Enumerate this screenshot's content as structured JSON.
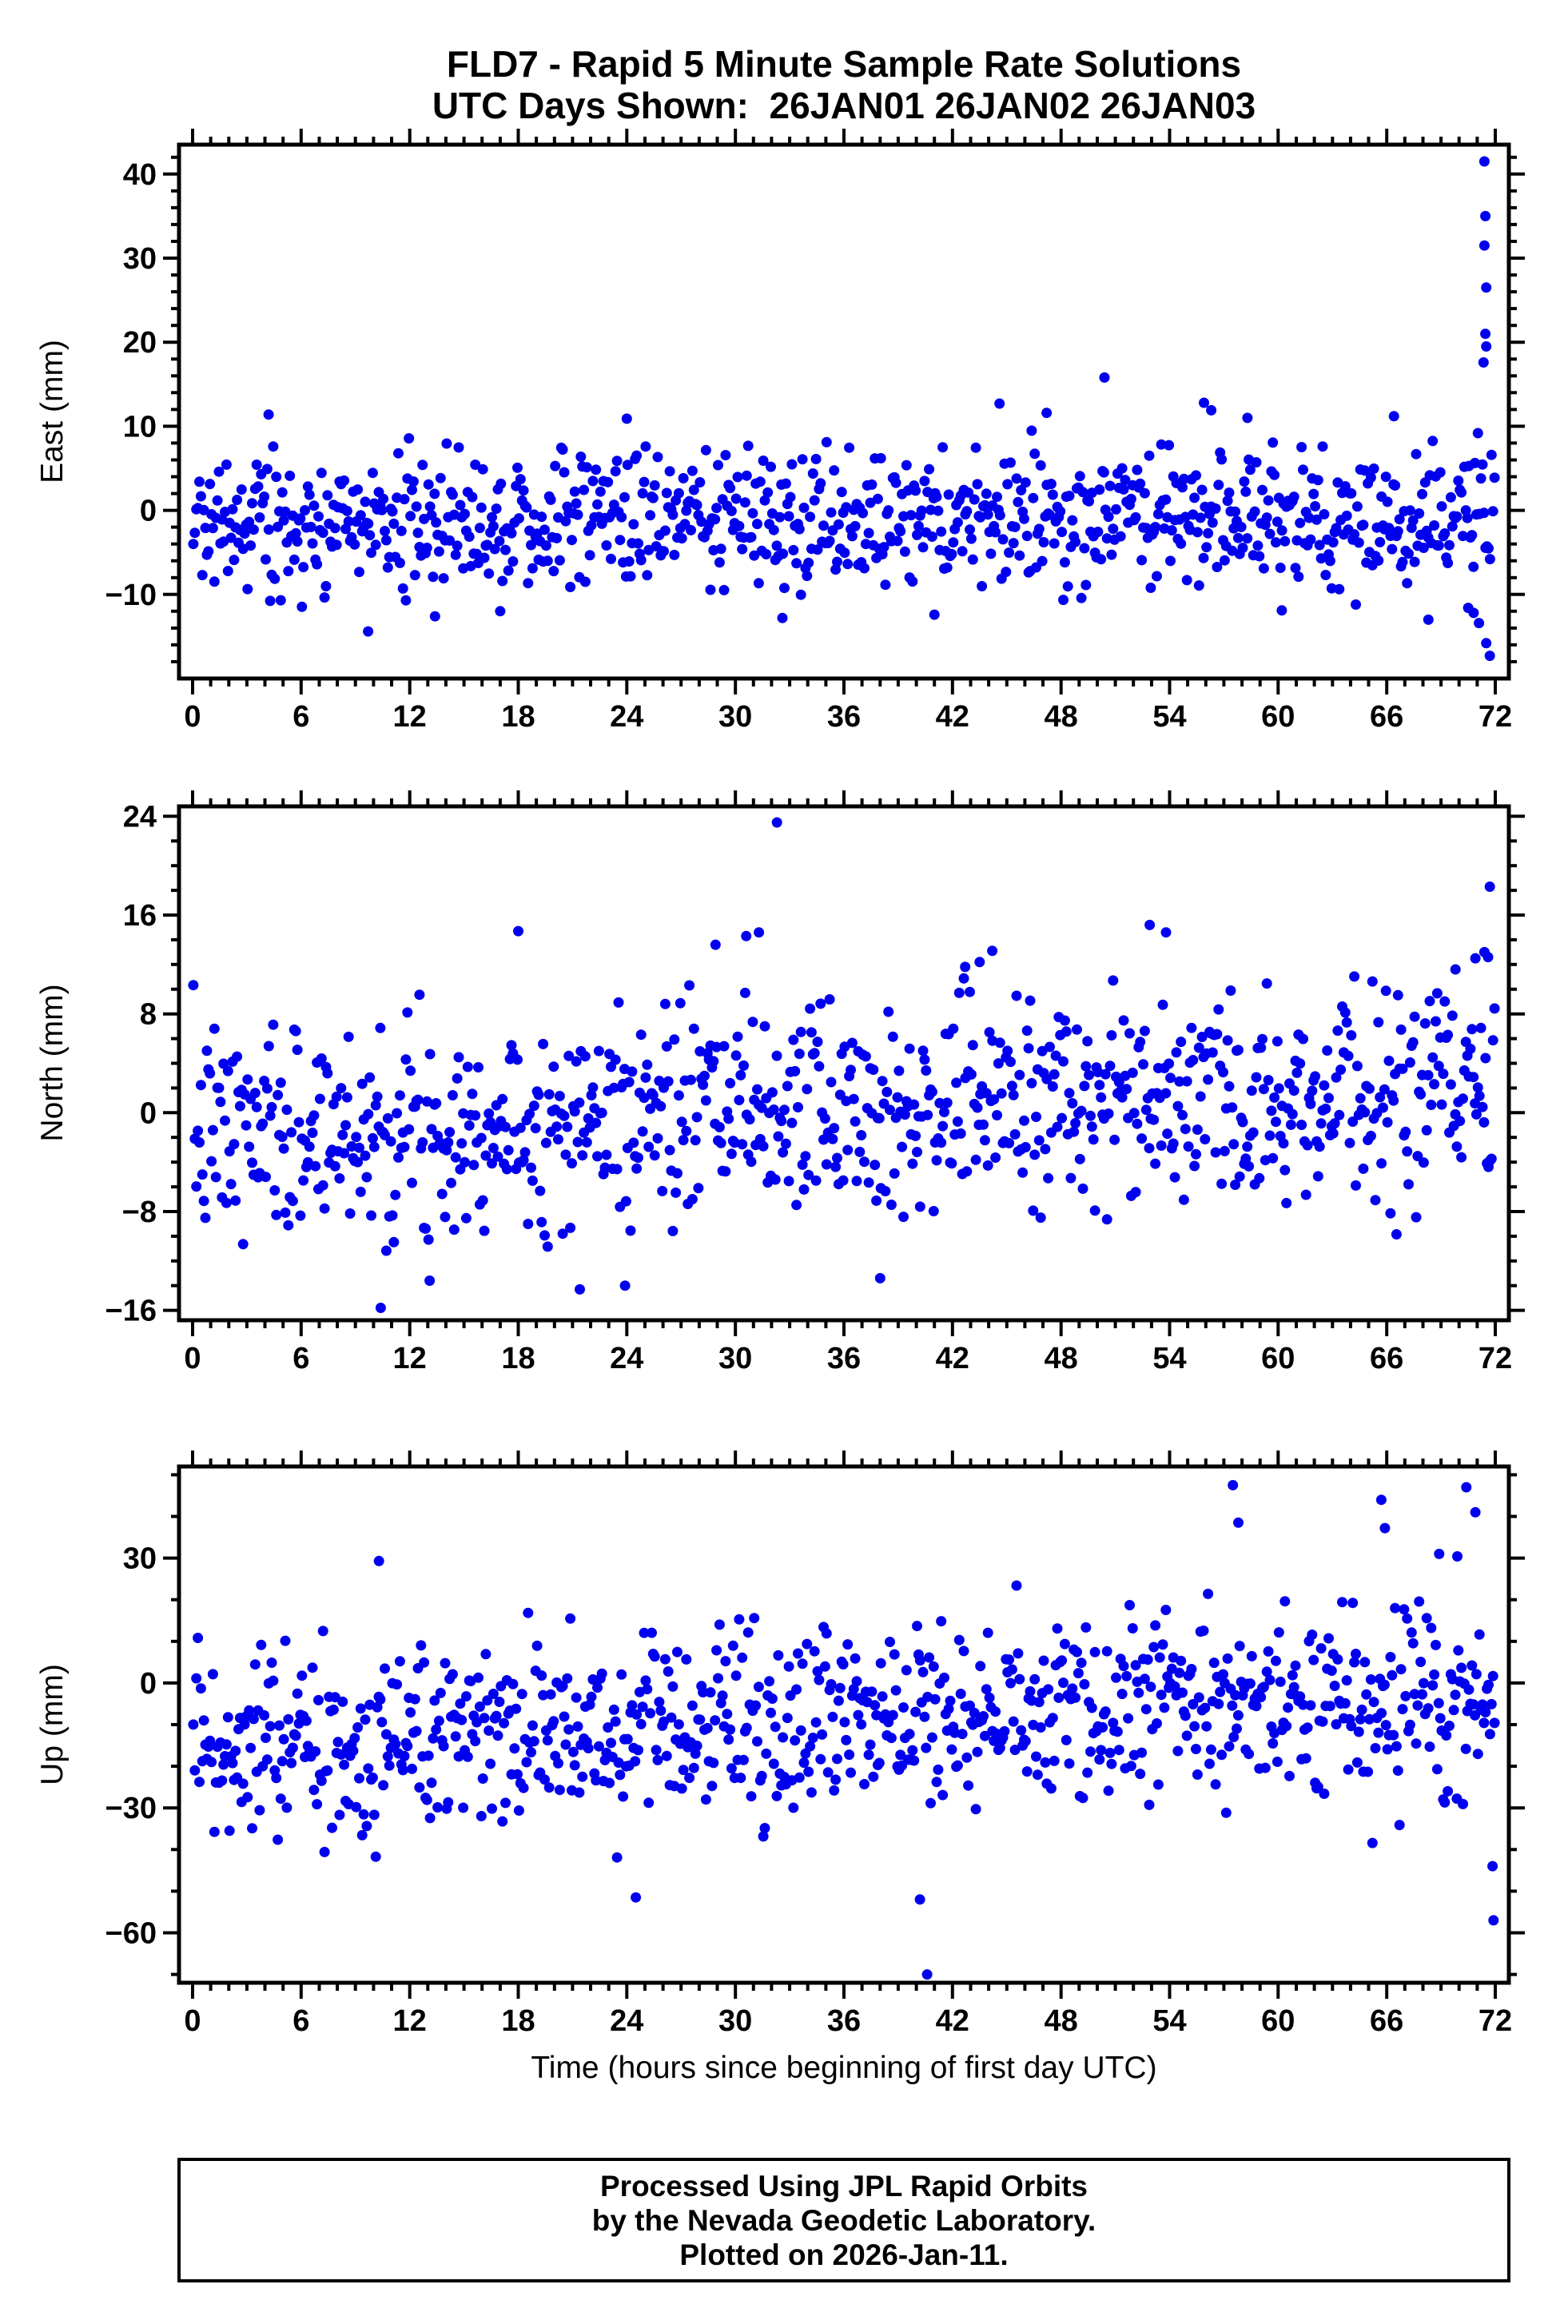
{
  "title": {
    "line1": "FLD7 - Rapid 5 Minute Sample Rate Solutions",
    "line2": "UTC Days Shown:  26JAN01 26JAN02 26JAN03"
  },
  "xlabel": "Time (hours since beginning of first day UTC)",
  "footer": {
    "line1": "Processed Using JPL Rapid Orbits",
    "line2": "by the Nevada Geodetic Laboratory.",
    "line3": "Plotted on 2026-Jan-11."
  },
  "style": {
    "marker_color": "#0000EE",
    "frame_color": "#000000",
    "background": "#FFFFFF"
  },
  "chart_data": [
    {
      "type": "scatter",
      "name": "east",
      "ylabel": "East (mm)",
      "xlabel": "Time (hours since beginning of first day UTC)",
      "xlim": [
        -0.75,
        72.75
      ],
      "ylim": [
        -20,
        43.5
      ],
      "yticks": [
        -10,
        0,
        10,
        20,
        30,
        40
      ],
      "y_minor_step": 2,
      "xticks": [
        0,
        6,
        12,
        18,
        24,
        30,
        36,
        42,
        48,
        54,
        60,
        66,
        72
      ],
      "x_minor_step": 1,
      "sample_interval_hours": 0.0833,
      "generator": {
        "seed": 20,
        "count": 864,
        "mean": -1.4,
        "sigma": 4.0,
        "clip": [
          -11.5,
          10.5
        ],
        "drift": {
          "amp": 0.6,
          "period": 150,
          "phase": -0.6
        }
      },
      "outliers": [
        [
          71.4,
          41.5
        ],
        [
          71.45,
          35.0
        ],
        [
          71.4,
          31.5
        ],
        [
          71.5,
          26.5
        ],
        [
          71.45,
          21.0
        ],
        [
          71.5,
          19.5
        ],
        [
          71.35,
          17.6
        ],
        [
          70.8,
          -12.2
        ],
        [
          71.1,
          -13.4
        ],
        [
          71.5,
          -15.8
        ],
        [
          71.7,
          -17.3
        ],
        [
          70.5,
          -11.6
        ],
        [
          9.7,
          -14.4
        ],
        [
          13.4,
          -12.6
        ],
        [
          17.0,
          -12.0
        ],
        [
          32.6,
          -12.8
        ],
        [
          41.0,
          -12.4
        ],
        [
          60.2,
          -11.9
        ],
        [
          68.3,
          -13.0
        ],
        [
          44.6,
          12.7
        ],
        [
          50.4,
          15.8
        ],
        [
          55.9,
          12.8
        ],
        [
          56.3,
          11.9
        ],
        [
          47.2,
          11.6
        ],
        [
          4.2,
          11.4
        ],
        [
          24.0,
          10.9
        ],
        [
          66.4,
          11.2
        ],
        [
          58.3,
          11.0
        ]
      ]
    },
    {
      "type": "scatter",
      "name": "north",
      "ylabel": "North (mm)",
      "xlabel": "Time (hours since beginning of first day UTC)",
      "xlim": [
        -0.75,
        72.75
      ],
      "ylim": [
        -16.8,
        24.8
      ],
      "yticks": [
        -16,
        -8,
        0,
        8,
        16,
        24
      ],
      "y_minor_step": 2,
      "xticks": [
        0,
        6,
        12,
        18,
        24,
        30,
        36,
        42,
        48,
        54,
        60,
        66,
        72
      ],
      "x_minor_step": 1,
      "sample_interval_hours": 0.0833,
      "generator": {
        "seed": 7,
        "count": 864,
        "mean": -0.3,
        "sigma": 4.4,
        "clip": [
          -11.8,
          11.5
        ],
        "drift": {
          "amp": 1.8,
          "period": 150,
          "phase": -1.0
        }
      },
      "outliers": [
        [
          32.3,
          23.5
        ],
        [
          10.4,
          -15.8
        ],
        [
          71.7,
          18.3
        ],
        [
          18.0,
          14.7
        ],
        [
          30.6,
          14.3
        ],
        [
          31.3,
          14.6
        ],
        [
          52.9,
          15.2
        ],
        [
          53.8,
          14.6
        ],
        [
          28.9,
          13.6
        ],
        [
          44.2,
          13.1
        ],
        [
          21.4,
          -14.3
        ],
        [
          23.9,
          -14.0
        ],
        [
          38.0,
          -13.4
        ],
        [
          13.1,
          -13.6
        ],
        [
          70.9,
          12.5
        ],
        [
          71.4,
          13.0
        ],
        [
          71.6,
          12.6
        ],
        [
          69.8,
          11.6
        ],
        [
          43.5,
          12.2
        ],
        [
          42.7,
          11.8
        ]
      ]
    },
    {
      "type": "scatter",
      "name": "up",
      "ylabel": "Up (mm)",
      "xlabel": "Time (hours since beginning of first day UTC)",
      "xlim": [
        -0.75,
        72.75
      ],
      "ylim": [
        -72,
        52
      ],
      "yticks": [
        -60,
        -30,
        0,
        30
      ],
      "y_minor_step": 10,
      "xticks": [
        0,
        6,
        12,
        18,
        24,
        30,
        36,
        42,
        48,
        54,
        60,
        66,
        72
      ],
      "x_minor_step": 1,
      "sample_interval_hours": 0.0833,
      "generator": {
        "seed": 99,
        "count": 864,
        "mean": -11,
        "sigma": 11.5,
        "clip": [
          -42,
          28
        ],
        "drift": {
          "amp": 6,
          "period": 150,
          "phase": -1.1
        }
      },
      "outliers": [
        [
          40.6,
          -70.0
        ],
        [
          40.2,
          -52.0
        ],
        [
          24.5,
          -51.5
        ],
        [
          57.5,
          47.5
        ],
        [
          70.4,
          47.0
        ],
        [
          65.7,
          44.0
        ],
        [
          70.9,
          41.0
        ],
        [
          57.8,
          38.5
        ],
        [
          65.9,
          37.2
        ],
        [
          68.9,
          31.0
        ],
        [
          69.9,
          30.4
        ],
        [
          10.3,
          29.3
        ],
        [
          71.85,
          -44.0
        ],
        [
          71.9,
          -57.0
        ]
      ]
    }
  ]
}
